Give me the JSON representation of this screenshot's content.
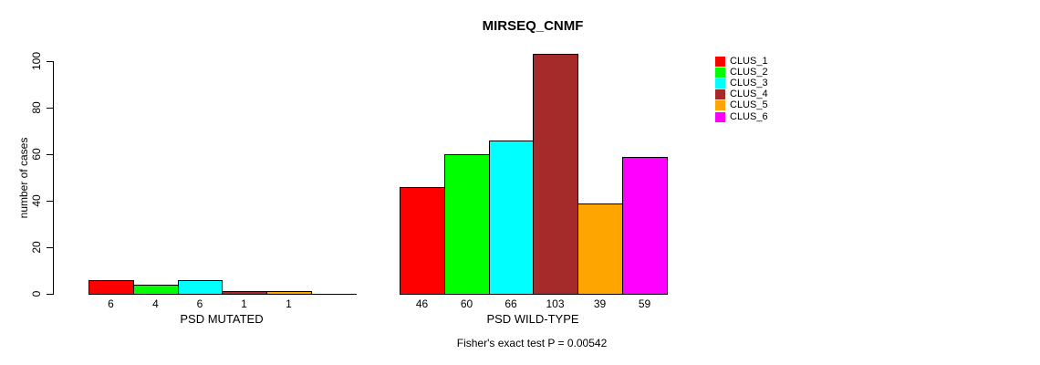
{
  "chart_data": {
    "type": "bar",
    "title": "MIRSEQ_CNMF",
    "ylabel": "number of cases",
    "xlabel": "",
    "ylim": [
      0,
      100
    ],
    "yticks": [
      0,
      20,
      40,
      60,
      80,
      100
    ],
    "grid": false,
    "legend_position": "top-right",
    "categories": [
      "PSD MUTATED",
      "PSD WILD-TYPE"
    ],
    "series": [
      {
        "name": "CLUS_1",
        "color": "#FF0000",
        "values": [
          6,
          46
        ]
      },
      {
        "name": "CLUS_2",
        "color": "#00FF00",
        "values": [
          4,
          60
        ]
      },
      {
        "name": "CLUS_3",
        "color": "#00FFFF",
        "values": [
          6,
          66
        ]
      },
      {
        "name": "CLUS_4",
        "color": "#A52A2A",
        "values": [
          1,
          103
        ]
      },
      {
        "name": "CLUS_5",
        "color": "#FFA500",
        "values": [
          1,
          39
        ]
      },
      {
        "name": "CLUS_6",
        "color": "#FF00FF",
        "values": [
          0,
          59
        ]
      }
    ],
    "bar_value_labels": [
      [
        "6",
        "4",
        "6",
        "1",
        "1",
        ""
      ],
      [
        "46",
        "60",
        "66",
        "103",
        "39",
        "59"
      ]
    ],
    "footnote": "Fisher's exact test P = 0.00542"
  }
}
